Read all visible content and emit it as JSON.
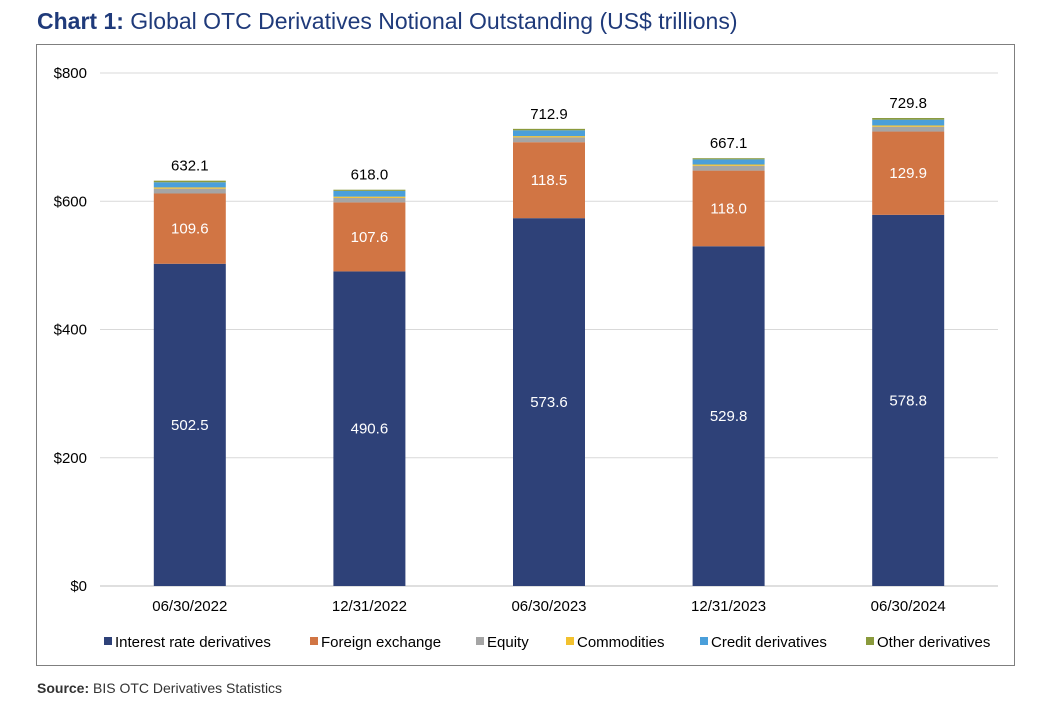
{
  "title": {
    "lead": "Chart 1:",
    "rest": "Global OTC Derivatives Notional Outstanding (US$ trillions)"
  },
  "source": {
    "lead": "Source:",
    "text": "BIS OTC Derivatives Statistics"
  },
  "chart_data": {
    "type": "bar",
    "stacked": true,
    "title": "Global OTC Derivatives Notional Outstanding (US$ trillions)",
    "categories": [
      "06/30/2022",
      "12/31/2022",
      "06/30/2023",
      "12/31/2023",
      "06/30/2024"
    ],
    "series": [
      {
        "name": "Interest rate derivatives",
        "color": "#2e4178",
        "values": [
          502.5,
          490.6,
          573.6,
          529.8,
          578.8
        ],
        "labels": [
          "502.5",
          "490.6",
          "573.6",
          "529.8",
          "578.8"
        ]
      },
      {
        "name": "Foreign exchange",
        "color": "#d17544",
        "values": [
          109.6,
          107.6,
          118.5,
          118.0,
          129.9
        ],
        "labels": [
          "109.6",
          "107.6",
          "118.5",
          "118.0",
          "129.9"
        ]
      },
      {
        "name": "Equity",
        "color": "#a5a5a5",
        "values": [
          7.5,
          7.0,
          7.5,
          7.5,
          7.5
        ]
      },
      {
        "name": "Commodities",
        "color": "#f2c12e",
        "values": [
          2.0,
          2.0,
          2.0,
          2.0,
          2.0
        ]
      },
      {
        "name": "Credit derivatives",
        "color": "#4a9fda",
        "values": [
          8.0,
          9.0,
          9.0,
          8.0,
          9.0
        ]
      },
      {
        "name": "Other derivatives",
        "color": "#8a9a3c",
        "values": [
          2.5,
          1.8,
          2.3,
          1.8,
          2.6
        ]
      }
    ],
    "totals": [
      "632.1",
      "618.0",
      "712.9",
      "667.1",
      "729.8"
    ],
    "ylim": [
      0,
      800
    ],
    "yticks": [
      0,
      200,
      400,
      600,
      800
    ],
    "ytick_labels": [
      "$0",
      "$200",
      "$400",
      "$600",
      "$800"
    ],
    "grid": true,
    "legend_position": "bottom"
  }
}
